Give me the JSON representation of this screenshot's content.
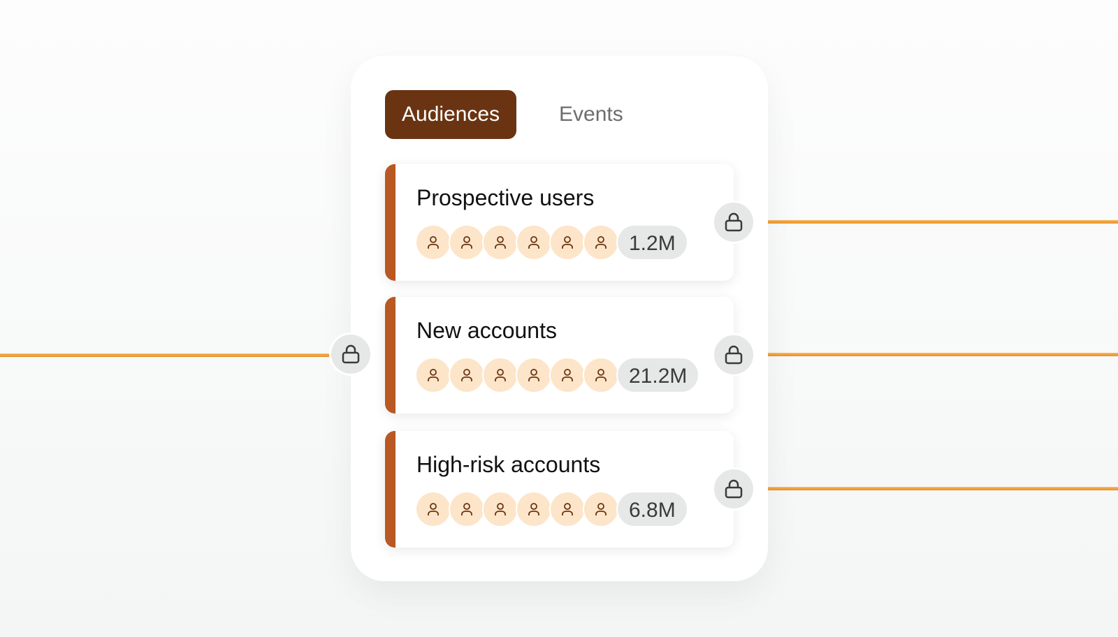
{
  "tabs": [
    {
      "label": "Audiences",
      "active": true
    },
    {
      "label": "Events",
      "active": false
    }
  ],
  "audiences": [
    {
      "title": "Prospective users",
      "count": "1.2M",
      "avatar_count": 6
    },
    {
      "title": "New accounts",
      "count": "21.2M",
      "avatar_count": 6
    },
    {
      "title": "High-risk accounts",
      "count": "6.8M",
      "avatar_count": 6
    }
  ],
  "colors": {
    "accent": "#b95823",
    "tab_active": "#6a3412",
    "connector": "#f3a23a",
    "avatar_bg": "#fde5c9"
  },
  "icons": {
    "lock": "lock-icon",
    "user": "user-icon"
  }
}
